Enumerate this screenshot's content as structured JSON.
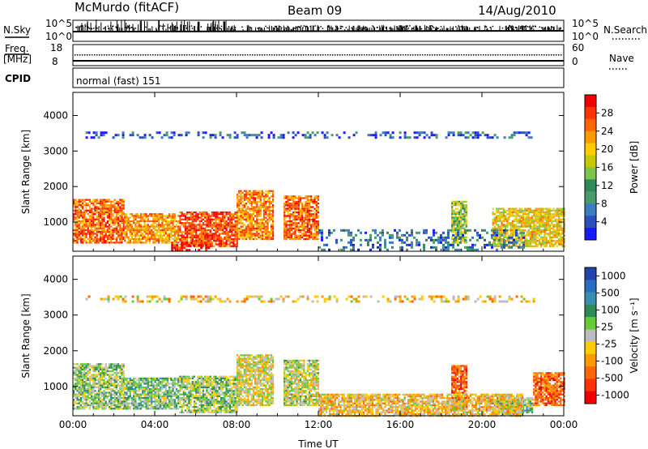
{
  "header": {
    "station": "McMurdo (fitACF)",
    "beam": "Beam 09",
    "date": "14/Aug/2010"
  },
  "strip": {
    "nsky_label": "N.Sky",
    "nsky_ticks": [
      "10^5",
      "10^0"
    ],
    "nsearch_label": "N.Search",
    "nsearch_ticks": [
      "10^5",
      "10^0"
    ],
    "freq_label_1": "Freq.",
    "freq_label_2": "[MHz]",
    "freq_ticks": [
      "18",
      "8"
    ],
    "nave_label": "Nave",
    "nave_ticks": [
      "60",
      "0"
    ],
    "cpid_label": "CPID",
    "cpid_text": "normal (fast) 151"
  },
  "colors": {
    "power": [
      "#1a1aff",
      "#2a52be",
      "#3c7cc0",
      "#4a9a6e",
      "#2e8b57",
      "#7cc44a",
      "#c8c800",
      "#ffcc00",
      "#ff9900",
      "#ff6600",
      "#ff3300",
      "#ee0000"
    ],
    "velocity": [
      "#2244aa",
      "#2a6ec0",
      "#3a8fb0",
      "#2e8b57",
      "#66cc33",
      "#bcbcbc",
      "#ffcc00",
      "#ff9900",
      "#ff6600",
      "#ff3300",
      "#ee0000"
    ]
  },
  "chart_data": [
    {
      "type": "heatmap",
      "name": "power",
      "ylabel": "Slant Range [km]",
      "xlabel": "",
      "xticks": [
        "00:00",
        "04:00",
        "08:00",
        "12:00",
        "16:00",
        "20:00",
        "00:00"
      ],
      "yticks": [
        1000,
        2000,
        3000,
        4000
      ],
      "ylim": [
        180,
        4650
      ],
      "xlim_hours": [
        0,
        24
      ],
      "colorbar": {
        "label": "Power [dB]",
        "ticks": [
          "4",
          "8",
          "12",
          "16",
          "20",
          "24",
          "28"
        ],
        "range": [
          0,
          32
        ]
      },
      "regions": [
        {
          "t": [
            0.0,
            2.5
          ],
          "r": [
            400,
            1650
          ],
          "level": 0.8
        },
        {
          "t": [
            2.5,
            5.2
          ],
          "r": [
            400,
            1250
          ],
          "level": 0.7
        },
        {
          "t": [
            5.2,
            8.0
          ],
          "r": [
            300,
            1300
          ],
          "level": 0.85
        },
        {
          "t": [
            8.0,
            9.8
          ],
          "r": [
            500,
            1900
          ],
          "level": 0.75
        },
        {
          "t": [
            10.3,
            12.0
          ],
          "r": [
            500,
            1750
          ],
          "level": 0.8
        },
        {
          "t": [
            4.8,
            6.7
          ],
          "r": [
            200,
            450
          ],
          "level": 0.95
        },
        {
          "t": [
            18.5,
            19.2
          ],
          "r": [
            400,
            1600
          ],
          "level": 0.5
        },
        {
          "t": [
            20.5,
            24.0
          ],
          "r": [
            300,
            1400
          ],
          "level": 0.6
        },
        {
          "t": [
            12.0,
            22.0
          ],
          "r": [
            200,
            800
          ],
          "level": 0.2
        },
        {
          "t": [
            0.5,
            22.5
          ],
          "r": [
            3400,
            3550
          ],
          "level": 0.15
        }
      ]
    },
    {
      "type": "heatmap",
      "name": "velocity",
      "ylabel": "Slant Range [km]",
      "xlabel": "Time UT",
      "xticks": [
        "00:00",
        "04:00",
        "08:00",
        "12:00",
        "16:00",
        "20:00",
        "00:00"
      ],
      "yticks": [
        1000,
        2000,
        3000,
        4000
      ],
      "ylim": [
        180,
        4650
      ],
      "xlim_hours": [
        0,
        24
      ],
      "colorbar": {
        "label": "Velocity [m s⁻¹]",
        "ticks": [
          "1000",
          "500",
          "100",
          "25",
          "-25",
          "-100",
          "-500",
          "-1000"
        ],
        "range": [
          -1000,
          1000
        ]
      },
      "regions": [
        {
          "t": [
            0.0,
            2.5
          ],
          "r": [
            400,
            1650
          ],
          "level": 0.45
        },
        {
          "t": [
            2.5,
            5.2
          ],
          "r": [
            400,
            1250
          ],
          "level": 0.4
        },
        {
          "t": [
            5.2,
            8.0
          ],
          "r": [
            300,
            1300
          ],
          "level": 0.45
        },
        {
          "t": [
            8.0,
            9.8
          ],
          "r": [
            500,
            1900
          ],
          "level": 0.55
        },
        {
          "t": [
            10.3,
            12.0
          ],
          "r": [
            500,
            1750
          ],
          "level": 0.5
        },
        {
          "t": [
            18.5,
            19.2
          ],
          "r": [
            400,
            1600
          ],
          "level": 0.8
        },
        {
          "t": [
            20.5,
            22.5
          ],
          "r": [
            300,
            700
          ],
          "level": 0.4
        },
        {
          "t": [
            22.5,
            24.0
          ],
          "r": [
            500,
            1400
          ],
          "level": 0.8
        },
        {
          "t": [
            12.0,
            22.0
          ],
          "r": [
            200,
            800
          ],
          "level": 0.6
        },
        {
          "t": [
            0.5,
            22.5
          ],
          "r": [
            3400,
            3550
          ],
          "level": 0.6
        }
      ]
    }
  ]
}
